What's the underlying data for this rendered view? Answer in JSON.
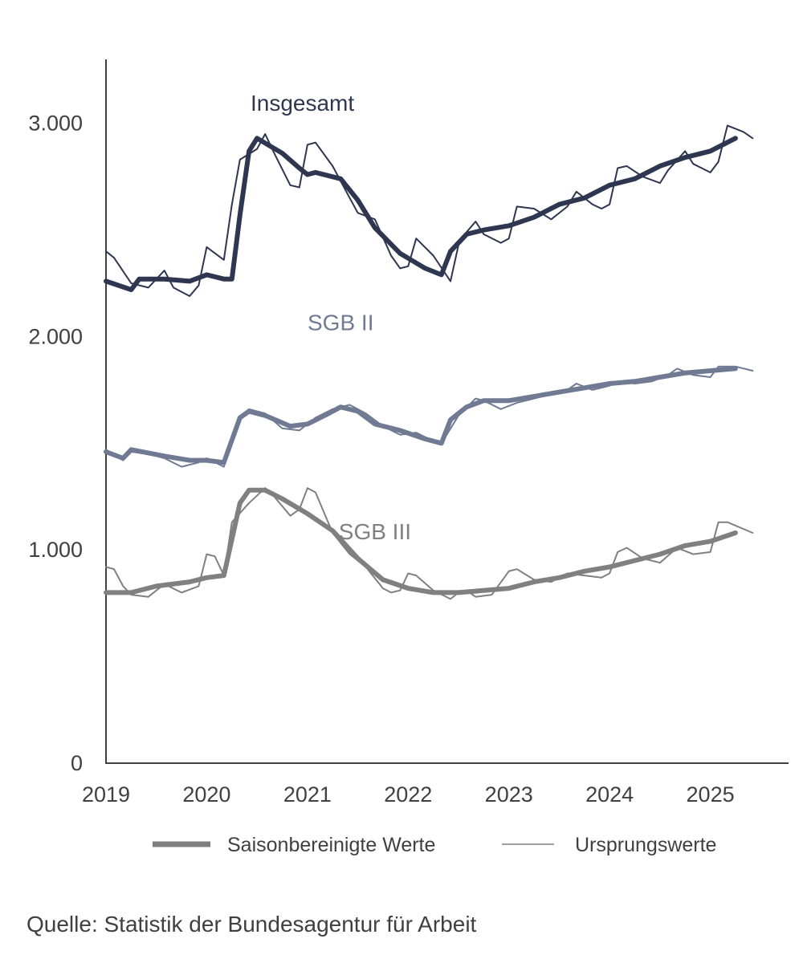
{
  "chart_data": {
    "type": "line",
    "ylim": [
      0,
      3300
    ],
    "xlim": [
      2019,
      2026
    ],
    "y_ticks": [
      {
        "value": 0,
        "label": "0"
      },
      {
        "value": 1000,
        "label": "1.000"
      },
      {
        "value": 2000,
        "label": "2.000"
      },
      {
        "value": 3000,
        "label": "3.000"
      }
    ],
    "x_ticks": [
      {
        "value": 2019,
        "label": "2019"
      },
      {
        "value": 2020,
        "label": "2020"
      },
      {
        "value": 2021,
        "label": "2021"
      },
      {
        "value": 2022,
        "label": "2022"
      },
      {
        "value": 2023,
        "label": "2023"
      },
      {
        "value": 2024,
        "label": "2024"
      },
      {
        "value": 2025,
        "label": "2025"
      }
    ],
    "grid": false,
    "legend_placement": "bottom",
    "legend": [
      {
        "label": "Saisonbereinigte Werte",
        "style": "thick"
      },
      {
        "label": "Ursprungswerte",
        "style": "thin"
      }
    ],
    "groups": [
      {
        "label": "Insgesamt",
        "label_at": [
          2020.95,
          3060
        ],
        "color": "#2e3650",
        "seasonal": [
          [
            2019.0,
            2260
          ],
          [
            2019.25,
            2220
          ],
          [
            2019.33,
            2270
          ],
          [
            2019.58,
            2270
          ],
          [
            2019.83,
            2260
          ],
          [
            2020.0,
            2290
          ],
          [
            2020.17,
            2270
          ],
          [
            2020.25,
            2270
          ],
          [
            2020.33,
            2570
          ],
          [
            2020.42,
            2870
          ],
          [
            2020.5,
            2930
          ],
          [
            2020.75,
            2860
          ],
          [
            2020.92,
            2790
          ],
          [
            2021.0,
            2760
          ],
          [
            2021.08,
            2770
          ],
          [
            2021.33,
            2740
          ],
          [
            2021.5,
            2640
          ],
          [
            2021.67,
            2510
          ],
          [
            2021.92,
            2390
          ],
          [
            2022.17,
            2320
          ],
          [
            2022.33,
            2290
          ],
          [
            2022.42,
            2400
          ],
          [
            2022.58,
            2480
          ],
          [
            2022.75,
            2500
          ],
          [
            2023.0,
            2520
          ],
          [
            2023.25,
            2560
          ],
          [
            2023.5,
            2620
          ],
          [
            2023.75,
            2650
          ],
          [
            2024.0,
            2710
          ],
          [
            2024.25,
            2740
          ],
          [
            2024.5,
            2800
          ],
          [
            2024.75,
            2840
          ],
          [
            2025.0,
            2870
          ],
          [
            2025.25,
            2930
          ]
        ],
        "original": [
          [
            2019.0,
            2400
          ],
          [
            2019.08,
            2370
          ],
          [
            2019.25,
            2250
          ],
          [
            2019.42,
            2230
          ],
          [
            2019.58,
            2310
          ],
          [
            2019.67,
            2230
          ],
          [
            2019.83,
            2190
          ],
          [
            2019.92,
            2240
          ],
          [
            2020.0,
            2420
          ],
          [
            2020.17,
            2360
          ],
          [
            2020.25,
            2620
          ],
          [
            2020.33,
            2830
          ],
          [
            2020.5,
            2880
          ],
          [
            2020.58,
            2950
          ],
          [
            2020.67,
            2860
          ],
          [
            2020.83,
            2710
          ],
          [
            2020.92,
            2700
          ],
          [
            2021.0,
            2900
          ],
          [
            2021.08,
            2910
          ],
          [
            2021.25,
            2800
          ],
          [
            2021.42,
            2650
          ],
          [
            2021.5,
            2580
          ],
          [
            2021.67,
            2550
          ],
          [
            2021.83,
            2380
          ],
          [
            2021.92,
            2320
          ],
          [
            2022.0,
            2330
          ],
          [
            2022.08,
            2460
          ],
          [
            2022.25,
            2380
          ],
          [
            2022.42,
            2260
          ],
          [
            2022.5,
            2430
          ],
          [
            2022.58,
            2490
          ],
          [
            2022.67,
            2540
          ],
          [
            2022.75,
            2480
          ],
          [
            2022.92,
            2440
          ],
          [
            2023.0,
            2460
          ],
          [
            2023.08,
            2610
          ],
          [
            2023.25,
            2600
          ],
          [
            2023.42,
            2550
          ],
          [
            2023.58,
            2610
          ],
          [
            2023.67,
            2680
          ],
          [
            2023.83,
            2620
          ],
          [
            2023.92,
            2600
          ],
          [
            2024.0,
            2620
          ],
          [
            2024.08,
            2790
          ],
          [
            2024.17,
            2800
          ],
          [
            2024.33,
            2750
          ],
          [
            2024.5,
            2720
          ],
          [
            2024.58,
            2780
          ],
          [
            2024.75,
            2870
          ],
          [
            2024.83,
            2810
          ],
          [
            2025.0,
            2770
          ],
          [
            2025.08,
            2820
          ],
          [
            2025.17,
            2990
          ],
          [
            2025.33,
            2960
          ],
          [
            2025.42,
            2930
          ]
        ]
      },
      {
        "label": "SGB II",
        "label_at": [
          2021.33,
          2030
        ],
        "color": "#707b93",
        "seasonal": [
          [
            2019.0,
            1460
          ],
          [
            2019.17,
            1430
          ],
          [
            2019.25,
            1470
          ],
          [
            2019.58,
            1440
          ],
          [
            2019.83,
            1420
          ],
          [
            2020.0,
            1420
          ],
          [
            2020.17,
            1410
          ],
          [
            2020.33,
            1620
          ],
          [
            2020.42,
            1650
          ],
          [
            2020.58,
            1630
          ],
          [
            2020.83,
            1580
          ],
          [
            2021.0,
            1590
          ],
          [
            2021.17,
            1630
          ],
          [
            2021.33,
            1670
          ],
          [
            2021.5,
            1650
          ],
          [
            2021.67,
            1590
          ],
          [
            2021.92,
            1560
          ],
          [
            2022.17,
            1520
          ],
          [
            2022.33,
            1500
          ],
          [
            2022.42,
            1610
          ],
          [
            2022.58,
            1670
          ],
          [
            2022.75,
            1700
          ],
          [
            2023.0,
            1700
          ],
          [
            2023.25,
            1720
          ],
          [
            2023.5,
            1740
          ],
          [
            2023.75,
            1760
          ],
          [
            2024.0,
            1780
          ],
          [
            2024.25,
            1790
          ],
          [
            2024.5,
            1810
          ],
          [
            2024.75,
            1830
          ],
          [
            2025.0,
            1840
          ],
          [
            2025.25,
            1850
          ]
        ],
        "original": [
          [
            2019.0,
            1470
          ],
          [
            2019.17,
            1420
          ],
          [
            2019.25,
            1460
          ],
          [
            2019.42,
            1450
          ],
          [
            2019.58,
            1430
          ],
          [
            2019.75,
            1390
          ],
          [
            2019.92,
            1410
          ],
          [
            2020.0,
            1430
          ],
          [
            2020.17,
            1390
          ],
          [
            2020.33,
            1620
          ],
          [
            2020.42,
            1660
          ],
          [
            2020.58,
            1640
          ],
          [
            2020.75,
            1570
          ],
          [
            2020.92,
            1560
          ],
          [
            2021.08,
            1620
          ],
          [
            2021.25,
            1660
          ],
          [
            2021.42,
            1680
          ],
          [
            2021.58,
            1640
          ],
          [
            2021.75,
            1580
          ],
          [
            2021.92,
            1540
          ],
          [
            2022.08,
            1550
          ],
          [
            2022.25,
            1510
          ],
          [
            2022.33,
            1500
          ],
          [
            2022.5,
            1630
          ],
          [
            2022.67,
            1710
          ],
          [
            2022.75,
            1700
          ],
          [
            2022.92,
            1660
          ],
          [
            2023.08,
            1690
          ],
          [
            2023.25,
            1710
          ],
          [
            2023.42,
            1730
          ],
          [
            2023.58,
            1750
          ],
          [
            2023.67,
            1780
          ],
          [
            2023.83,
            1750
          ],
          [
            2024.0,
            1770
          ],
          [
            2024.08,
            1790
          ],
          [
            2024.25,
            1780
          ],
          [
            2024.42,
            1790
          ],
          [
            2024.58,
            1820
          ],
          [
            2024.67,
            1850
          ],
          [
            2024.83,
            1820
          ],
          [
            2025.0,
            1810
          ],
          [
            2025.08,
            1860
          ],
          [
            2025.25,
            1860
          ],
          [
            2025.42,
            1840
          ]
        ]
      },
      {
        "label": "SGB III",
        "label_at": [
          2021.67,
          1050
        ],
        "color": "#808080",
        "seasonal": [
          [
            2019.0,
            800
          ],
          [
            2019.25,
            800
          ],
          [
            2019.5,
            830
          ],
          [
            2019.83,
            850
          ],
          [
            2020.0,
            870
          ],
          [
            2020.17,
            880
          ],
          [
            2020.25,
            1050
          ],
          [
            2020.33,
            1220
          ],
          [
            2020.42,
            1280
          ],
          [
            2020.58,
            1280
          ],
          [
            2020.75,
            1240
          ],
          [
            2021.0,
            1170
          ],
          [
            2021.25,
            1090
          ],
          [
            2021.5,
            960
          ],
          [
            2021.75,
            860
          ],
          [
            2022.0,
            820
          ],
          [
            2022.25,
            800
          ],
          [
            2022.5,
            800
          ],
          [
            2022.75,
            810
          ],
          [
            2023.0,
            820
          ],
          [
            2023.25,
            850
          ],
          [
            2023.5,
            870
          ],
          [
            2023.75,
            900
          ],
          [
            2024.0,
            920
          ],
          [
            2024.25,
            950
          ],
          [
            2024.5,
            980
          ],
          [
            2024.75,
            1020
          ],
          [
            2025.0,
            1040
          ],
          [
            2025.25,
            1080
          ]
        ],
        "original": [
          [
            2019.0,
            920
          ],
          [
            2019.08,
            910
          ],
          [
            2019.17,
            830
          ],
          [
            2019.25,
            790
          ],
          [
            2019.42,
            780
          ],
          [
            2019.58,
            840
          ],
          [
            2019.75,
            800
          ],
          [
            2019.92,
            830
          ],
          [
            2020.0,
            980
          ],
          [
            2020.08,
            970
          ],
          [
            2020.17,
            880
          ],
          [
            2020.25,
            1130
          ],
          [
            2020.42,
            1220
          ],
          [
            2020.58,
            1290
          ],
          [
            2020.67,
            1250
          ],
          [
            2020.83,
            1160
          ],
          [
            2020.92,
            1190
          ],
          [
            2021.0,
            1290
          ],
          [
            2021.08,
            1270
          ],
          [
            2021.25,
            1080
          ],
          [
            2021.42,
            980
          ],
          [
            2021.58,
            920
          ],
          [
            2021.75,
            820
          ],
          [
            2021.83,
            800
          ],
          [
            2021.92,
            810
          ],
          [
            2022.0,
            890
          ],
          [
            2022.08,
            880
          ],
          [
            2022.25,
            810
          ],
          [
            2022.42,
            770
          ],
          [
            2022.5,
            800
          ],
          [
            2022.58,
            810
          ],
          [
            2022.67,
            780
          ],
          [
            2022.83,
            790
          ],
          [
            2023.0,
            900
          ],
          [
            2023.08,
            910
          ],
          [
            2023.25,
            860
          ],
          [
            2023.42,
            850
          ],
          [
            2023.58,
            890
          ],
          [
            2023.75,
            880
          ],
          [
            2023.92,
            870
          ],
          [
            2024.0,
            890
          ],
          [
            2024.08,
            990
          ],
          [
            2024.17,
            1010
          ],
          [
            2024.33,
            960
          ],
          [
            2024.5,
            940
          ],
          [
            2024.67,
            1010
          ],
          [
            2024.83,
            980
          ],
          [
            2025.0,
            990
          ],
          [
            2025.08,
            1130
          ],
          [
            2025.17,
            1130
          ],
          [
            2025.42,
            1080
          ]
        ]
      }
    ]
  },
  "source": "Quelle: Statistik der Bundesagentur für Arbeit"
}
